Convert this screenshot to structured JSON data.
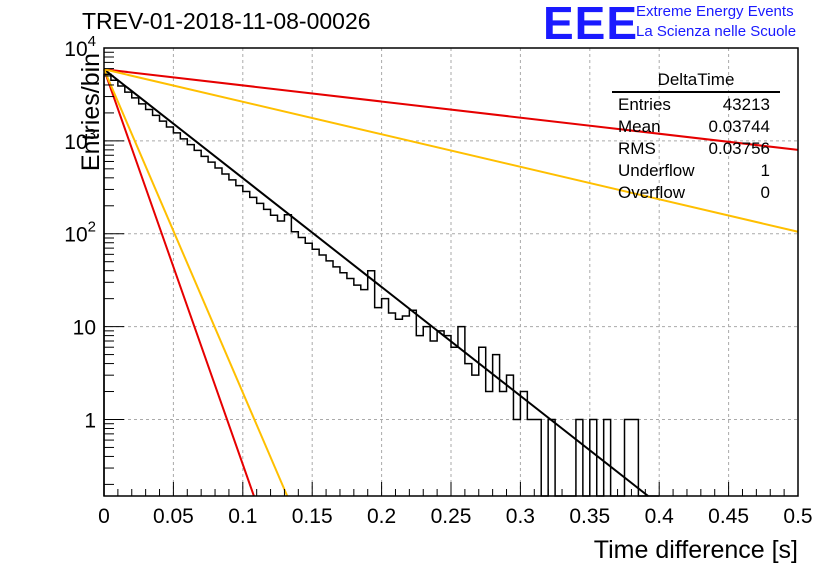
{
  "header": {
    "run_title": "TREV-01-2018-11-08-00026",
    "logo_text": "EEE",
    "logo_line1": "Extreme Energy Events",
    "logo_line2": "La Scienza nelle Scuole"
  },
  "stats_box": {
    "title": "DeltaTime",
    "rows": [
      {
        "key": "Entries",
        "value": "43213"
      },
      {
        "key": "Mean",
        "value": "0.03744"
      },
      {
        "key": "RMS",
        "value": "0.03756"
      },
      {
        "key": "Underflow",
        "value": "1"
      },
      {
        "key": "Overflow",
        "value": "0"
      }
    ]
  },
  "chart_data": {
    "type": "histogram",
    "xlabel": "Time difference [s]",
    "ylabel": "Entries/bin",
    "xlim": [
      0,
      0.5
    ],
    "ylim": [
      0.15,
      10000
    ],
    "yscale": "log",
    "grid": true,
    "x_ticks": [
      "0",
      "0.05",
      "0.1",
      "0.15",
      "0.2",
      "0.25",
      "0.3",
      "0.35",
      "0.4",
      "0.45",
      "0.5"
    ],
    "y_ticks": [
      {
        "value": 1,
        "label": "1"
      },
      {
        "value": 10,
        "label": "10"
      },
      {
        "value": 100,
        "label": "10^2"
      },
      {
        "value": 1000,
        "label": "10^3"
      },
      {
        "value": 10000,
        "label": "10^4"
      }
    ],
    "bin_width": 0.005,
    "bin_start": 0,
    "histogram": [
      5200,
      4500,
      3900,
      3350,
      2900,
      2500,
      2180,
      1880,
      1630,
      1410,
      1220,
      1050,
      910,
      790,
      680,
      590,
      510,
      440,
      380,
      330,
      285,
      246,
      212,
      183,
      158,
      137,
      160,
      105,
      91,
      79,
      68,
      59,
      51,
      44,
      38,
      33,
      28,
      25,
      40,
      16,
      20,
      14,
      12,
      13,
      15,
      8,
      10,
      7,
      9,
      8,
      6,
      10,
      4,
      3,
      6,
      2,
      5,
      2,
      3,
      1,
      2,
      1,
      1,
      0,
      1,
      0,
      0,
      0,
      1,
      0,
      1,
      0,
      1,
      0,
      0,
      1,
      1,
      0,
      0,
      0
    ],
    "fit_lines": [
      {
        "color": "#000000",
        "x": [
          0,
          0.392
        ],
        "y": [
          5900,
          0.15
        ]
      },
      {
        "color": "#e60000",
        "x": [
          0,
          0.5
        ],
        "y": [
          5900,
          800
        ]
      },
      {
        "color": "#ffbf00",
        "x": [
          0,
          0.5
        ],
        "y": [
          5900,
          105
        ]
      },
      {
        "color": "#e60000",
        "x": [
          0,
          0.108
        ],
        "y": [
          5900,
          0.15
        ]
      },
      {
        "color": "#ffbf00",
        "x": [
          0,
          0.132
        ],
        "y": [
          5900,
          0.15
        ]
      }
    ]
  }
}
